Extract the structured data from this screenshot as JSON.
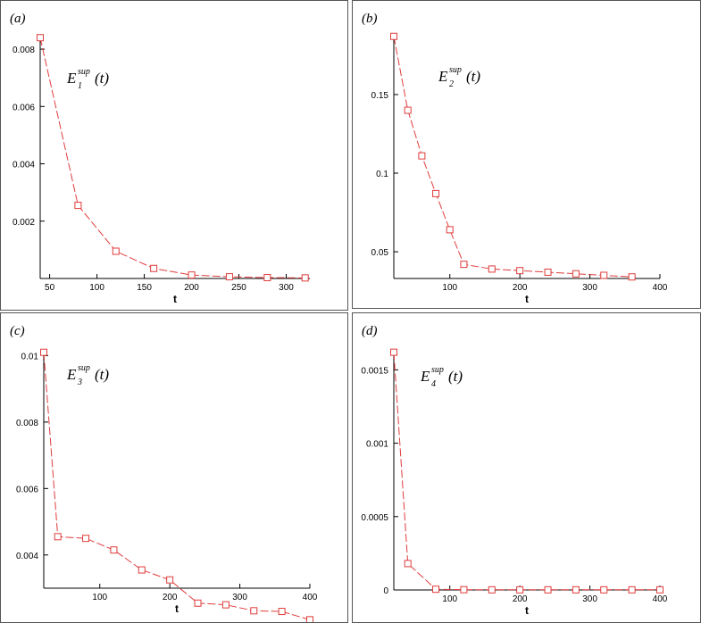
{
  "colors": {
    "series": "#e03c3c",
    "axis": "#000000",
    "border": "#555555"
  },
  "chart_data": [
    {
      "type": "line",
      "panel_label": "(a)",
      "annotation": {
        "base": "E",
        "sup": "sup",
        "sub": "1",
        "arg": "(t)"
      },
      "xlabel": "t",
      "ylabel": "",
      "xlim": [
        40,
        325
      ],
      "ylim": [
        0,
        0.0085
      ],
      "xticks": [
        50,
        100,
        150,
        200,
        250,
        300
      ],
      "xtick_labels": [
        "50",
        "100",
        "150",
        "200",
        "250",
        "300"
      ],
      "yticks": [
        0.002,
        0.004,
        0.006,
        0.008
      ],
      "ytick_labels": [
        "0.002",
        "0.004",
        "0.006",
        "0.008"
      ],
      "x": [
        40,
        80,
        120,
        160,
        200,
        240,
        280,
        320
      ],
      "y": [
        0.0084,
        0.00255,
        0.00095,
        0.00035,
        0.00012,
        6e-05,
        3e-05,
        2e-05
      ],
      "marker": "square",
      "line_style": "dashed"
    },
    {
      "type": "line",
      "panel_label": "(b)",
      "annotation": {
        "base": "E",
        "sup": "sup",
        "sub": "2",
        "arg": "(t)"
      },
      "xlabel": "t",
      "ylabel": "",
      "xlim": [
        20,
        400
      ],
      "ylim": [
        0.033,
        0.188
      ],
      "xticks": [
        100,
        200,
        300,
        400
      ],
      "xtick_labels": [
        "100",
        "200",
        "300",
        "400"
      ],
      "yticks": [
        0.05,
        0.1,
        0.15
      ],
      "ytick_labels": [
        "0.05",
        "0.1",
        "0.15"
      ],
      "x": [
        20,
        40,
        60,
        80,
        100,
        120,
        160,
        200,
        240,
        280,
        320,
        360
      ],
      "y": [
        0.187,
        0.14,
        0.111,
        0.087,
        0.064,
        0.042,
        0.039,
        0.038,
        0.037,
        0.036,
        0.035,
        0.034
      ],
      "marker": "square",
      "line_style": "dashed"
    },
    {
      "type": "line",
      "panel_label": "(c)",
      "annotation": {
        "base": "E",
        "sup": "sup",
        "sub": "3",
        "arg": "(t)"
      },
      "xlabel": "t",
      "ylabel": "",
      "xlim": [
        20,
        400
      ],
      "ylim": [
        0.003,
        0.0102
      ],
      "xticks": [
        100,
        200,
        300,
        400
      ],
      "xtick_labels": [
        "100",
        "200",
        "300",
        "400"
      ],
      "yticks": [
        0.004,
        0.006,
        0.008,
        0.01
      ],
      "ytick_labels": [
        "0.004",
        "0.006",
        "0.008",
        "0.01"
      ],
      "x": [
        20,
        40,
        80,
        120,
        160,
        200,
        240,
        280,
        320,
        360,
        400
      ],
      "y": [
        0.0101,
        0.00455,
        0.0045,
        0.00415,
        0.00355,
        0.00325,
        0.00255,
        0.0025,
        0.00232,
        0.0023,
        0.00205
      ],
      "marker": "square",
      "line_style": "dashed"
    },
    {
      "type": "line",
      "panel_label": "(d)",
      "annotation": {
        "base": "E",
        "sup": "sup",
        "sub": "4",
        "arg": "(t)"
      },
      "xlabel": "t",
      "ylabel": "",
      "xlim": [
        20,
        400
      ],
      "ylim": [
        0,
        0.00163
      ],
      "xticks": [
        100,
        200,
        300,
        400
      ],
      "xtick_labels": [
        "100",
        "200",
        "300",
        "400"
      ],
      "yticks": [
        0,
        0.0005,
        0.001,
        0.0015
      ],
      "ytick_labels": [
        "0",
        "0.0005",
        "0.001",
        "0.0015"
      ],
      "x": [
        20,
        40,
        80,
        120,
        160,
        200,
        240,
        280,
        320,
        360,
        400
      ],
      "y": [
        0.00162,
        0.00018,
        5e-06,
        2e-06,
        1e-06,
        1e-06,
        1e-06,
        1e-06,
        1e-06,
        1e-06,
        1e-06
      ],
      "marker": "square",
      "line_style": "dashed"
    }
  ]
}
